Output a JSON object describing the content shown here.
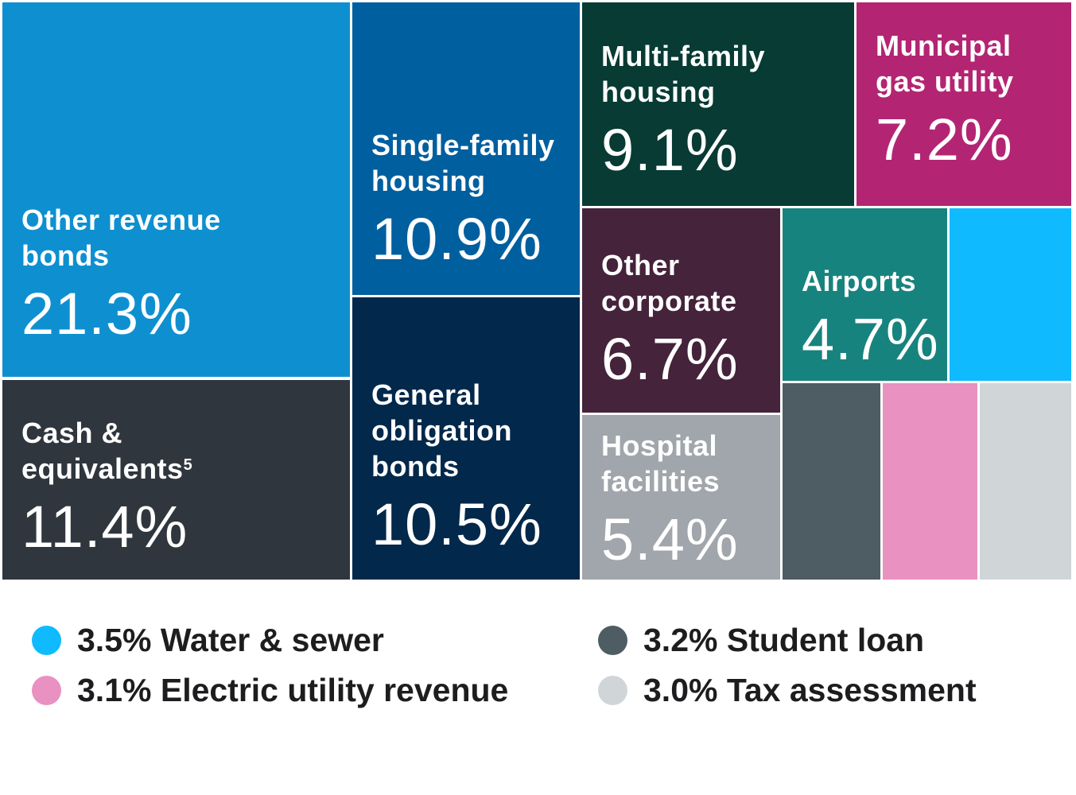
{
  "chart_data": {
    "type": "treemap",
    "unit": "%",
    "items": [
      {
        "name": "Other revenue bonds",
        "value": 21.3,
        "label": "21.3%",
        "color": "#0e90d0",
        "labeled": true
      },
      {
        "name": "Cash & equivalents",
        "footnote": "5",
        "value": 11.4,
        "label": "11.4%",
        "color": "#30363d",
        "labeled": true
      },
      {
        "name": "Single-family housing",
        "value": 10.9,
        "label": "10.9%",
        "color": "#005f9f",
        "labeled": true
      },
      {
        "name": "General obligation bonds",
        "value": 10.5,
        "label": "10.5%",
        "color": "#02284b",
        "labeled": true
      },
      {
        "name": "Multi-family housing",
        "value": 9.1,
        "label": "9.1%",
        "color": "#073b34",
        "labeled": true
      },
      {
        "name": "Municipal gas utility",
        "value": 7.2,
        "label": "7.2%",
        "color": "#b32573",
        "labeled": true
      },
      {
        "name": "Other corporate",
        "value": 6.7,
        "label": "6.7%",
        "color": "#45233b",
        "labeled": true
      },
      {
        "name": "Airports",
        "value": 4.7,
        "label": "4.7%",
        "color": "#17837e",
        "labeled": true
      },
      {
        "name": "Hospital facilities",
        "value": 5.4,
        "label": "5.4%",
        "color": "#a0a6ab",
        "labeled": true
      },
      {
        "name": "Water & sewer",
        "value": 3.5,
        "label": "3.5% Water & sewer",
        "color": "#10baff",
        "labeled": false
      },
      {
        "name": "Student loan",
        "value": 3.2,
        "label": "3.2% Student loan",
        "color": "#4e5c63",
        "labeled": false
      },
      {
        "name": "Electric utility revenue",
        "value": 3.1,
        "label": "3.1% Electric utility revenue",
        "color": "#e991c1",
        "labeled": false
      },
      {
        "name": "Tax assessment",
        "value": 3.0,
        "label": "3.0% Tax assessment",
        "color": "#d0d5d8",
        "labeled": false
      }
    ],
    "name_lines": {
      "Other revenue bonds": "Other revenue\nbonds",
      "Cash & equivalents": "Cash &\nequivalents",
      "Single-family housing": "Single-family\nhousing",
      "General obligation bonds": "General\nobligation\nbonds",
      "Multi-family housing": "Multi-family\nhousing",
      "Municipal gas utility": "Municipal\ngas utility",
      "Other corporate": "Other\ncorporate",
      "Airports": "Airports",
      "Hospital facilities": "Hospital\nfacilities"
    },
    "legend_order": [
      "Water & sewer",
      "Electric utility revenue",
      "Student loan",
      "Tax assessment"
    ]
  }
}
